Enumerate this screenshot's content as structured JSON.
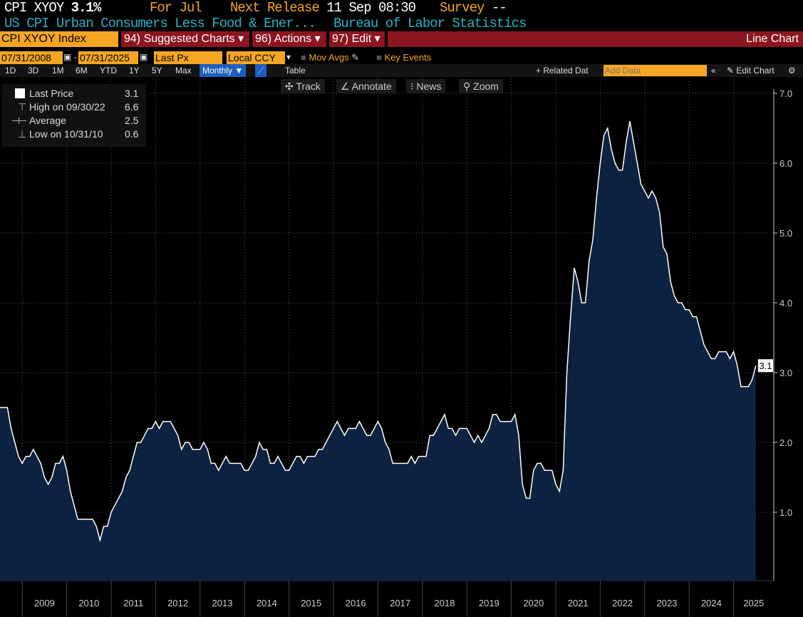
{
  "header": {
    "ticker": "CPI XYOY",
    "value": "3.1%",
    "period": "For Jul",
    "next_release_label": "Next Release",
    "next_release": "11 Sep 08:30",
    "survey_label": "Survey",
    "survey": "--",
    "name": "US CPI Urban Consumers Less Food & Ener...",
    "source": "Bureau of Labor Statistics"
  },
  "toolbar": {
    "security": "CPI XYOY Index",
    "suggested": "94) Suggested Charts",
    "actions": "96) Actions",
    "edit": "97) Edit",
    "chart_type": "Line Chart",
    "start_date": "07/31/2008",
    "end_date": "07/31/2025",
    "field": "Last Px",
    "currency": "Local CCY",
    "mov_avgs": "Mov Avgs",
    "key_events": "Key Events",
    "periods": [
      "1D",
      "3D",
      "1M",
      "6M",
      "YTD",
      "1Y",
      "5Y",
      "Max"
    ],
    "frequency": "Monthly ▼",
    "table": "Table",
    "related": "+ Related Dat",
    "add_data_placeholder": "Add Data",
    "edit_chart": "Edit Chart",
    "track": "Track",
    "annotate": "Annotate",
    "news": "News",
    "zoom": "Zoom"
  },
  "legend": {
    "last_label": "Last Price",
    "last": "3.1",
    "high_label": "High on 09/30/22",
    "high": "6.6",
    "avg_label": "Average",
    "avg": "2.5",
    "low_label": "Low on 10/31/10",
    "low": "0.6"
  },
  "colors": {
    "line": "#ffffff",
    "fill": "#0d2240",
    "accent": "#f5a623",
    "bar": "#8b1520"
  },
  "chart_data": {
    "type": "area",
    "title": "CPI XYOY Index",
    "start": "2008-07",
    "frequency": "monthly",
    "ylim": [
      0,
      7.2
    ],
    "yticks": [
      "7.0",
      "6.0",
      "5.0",
      "4.0",
      "3.0",
      "2.0",
      "1.0"
    ],
    "last_tag": "3.1",
    "xlabels": [
      "2009",
      "2010",
      "2011",
      "2012",
      "2013",
      "2014",
      "2015",
      "2016",
      "2017",
      "2018",
      "2019",
      "2020",
      "2021",
      "2022",
      "2023",
      "2024",
      "2025"
    ],
    "values": [
      2.5,
      2.5,
      2.5,
      2.2,
      2.0,
      1.8,
      1.7,
      1.8,
      1.8,
      1.9,
      1.8,
      1.7,
      1.5,
      1.4,
      1.5,
      1.7,
      1.7,
      1.8,
      1.6,
      1.3,
      1.1,
      0.9,
      0.9,
      0.9,
      0.9,
      0.9,
      0.8,
      0.6,
      0.8,
      0.8,
      1.0,
      1.1,
      1.2,
      1.3,
      1.5,
      1.6,
      1.8,
      2.0,
      2.0,
      2.1,
      2.2,
      2.2,
      2.3,
      2.2,
      2.3,
      2.3,
      2.3,
      2.2,
      2.1,
      1.9,
      2.0,
      2.0,
      1.9,
      1.9,
      1.9,
      2.0,
      1.9,
      1.7,
      1.7,
      1.6,
      1.7,
      1.8,
      1.7,
      1.7,
      1.7,
      1.7,
      1.6,
      1.6,
      1.7,
      1.8,
      2.0,
      1.9,
      1.9,
      1.7,
      1.7,
      1.8,
      1.7,
      1.6,
      1.6,
      1.7,
      1.8,
      1.8,
      1.7,
      1.8,
      1.8,
      1.8,
      1.9,
      1.9,
      2.0,
      2.1,
      2.2,
      2.3,
      2.2,
      2.1,
      2.2,
      2.2,
      2.2,
      2.3,
      2.2,
      2.1,
      2.1,
      2.2,
      2.3,
      2.2,
      2.0,
      1.9,
      1.7,
      1.7,
      1.7,
      1.7,
      1.7,
      1.8,
      1.7,
      1.8,
      1.8,
      1.8,
      2.1,
      2.1,
      2.2,
      2.3,
      2.4,
      2.2,
      2.2,
      2.1,
      2.2,
      2.2,
      2.2,
      2.1,
      2.0,
      2.1,
      2.0,
      2.1,
      2.2,
      2.4,
      2.4,
      2.3,
      2.3,
      2.3,
      2.3,
      2.4,
      2.1,
      1.4,
      1.2,
      1.2,
      1.6,
      1.7,
      1.7,
      1.6,
      1.6,
      1.6,
      1.4,
      1.3,
      1.6,
      3.0,
      3.8,
      4.5,
      4.3,
      4.0,
      4.0,
      4.6,
      4.9,
      5.5,
      6.0,
      6.4,
      6.5,
      6.2,
      6.0,
      5.9,
      5.9,
      6.3,
      6.6,
      6.3,
      6.0,
      5.7,
      5.6,
      5.5,
      5.6,
      5.5,
      5.3,
      4.8,
      4.7,
      4.3,
      4.1,
      4.0,
      4.0,
      3.9,
      3.9,
      3.8,
      3.8,
      3.6,
      3.4,
      3.3,
      3.2,
      3.2,
      3.3,
      3.3,
      3.3,
      3.2,
      3.3,
      3.1,
      2.8,
      2.8,
      2.8,
      2.9,
      3.1
    ]
  }
}
